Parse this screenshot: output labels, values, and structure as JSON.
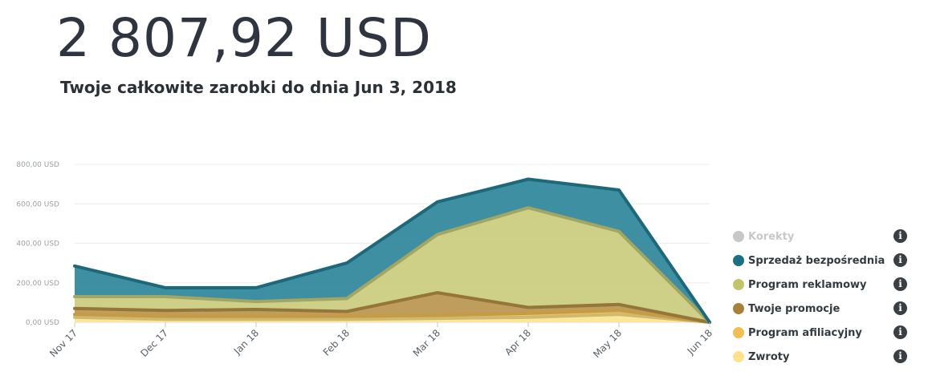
{
  "header": {
    "total": "2 807,92 USD",
    "subtitle": "Twoje całkowite zarobki do dnia Jun 3, 2018"
  },
  "chart_data": {
    "type": "area",
    "stacked": true,
    "categories": [
      "Nov 17",
      "Dec 17",
      "Jan 18",
      "Feb 18",
      "Mar 18",
      "Apr 18",
      "May 18",
      "Jun 18"
    ],
    "ylim": [
      0,
      800
    ],
    "yticks": [
      0,
      200,
      400,
      600,
      800
    ],
    "ytick_labels": [
      "0,00 USD",
      "200,00 USD",
      "400,00 USD",
      "600,00 USD",
      "800,00 USD"
    ],
    "grid": true,
    "legend_position": "right",
    "series": [
      {
        "name": "Zwroty",
        "color": "#fbe28b",
        "values": [
          25,
          15,
          15,
          15,
          20,
          25,
          40,
          0
        ]
      },
      {
        "name": "Program afiliacyjny",
        "color": "#f2bd52",
        "values": [
          15,
          15,
          15,
          15,
          15,
          20,
          20,
          0
        ]
      },
      {
        "name": "Twoje promocje",
        "color": "#b68f45",
        "values": [
          30,
          30,
          35,
          25,
          115,
          30,
          30,
          0
        ]
      },
      {
        "name": "Program reklamowy",
        "color": "#c7c977",
        "values": [
          60,
          70,
          40,
          65,
          295,
          505,
          370,
          0
        ]
      },
      {
        "name": "Sprzedaż bezpośrednia",
        "color": "#237f95",
        "values": [
          155,
          45,
          70,
          180,
          165,
          145,
          210,
          0
        ]
      },
      {
        "name": "Korekty",
        "color": "#c8c8c8",
        "values": [
          0,
          0,
          0,
          0,
          0,
          0,
          0,
          0
        ],
        "hidden": true
      }
    ]
  },
  "legend": {
    "items": [
      {
        "label": "Korekty",
        "color": "#c8c8c8",
        "muted": true
      },
      {
        "label": "Sprzedaż bezpośrednia",
        "color": "#1d6f85",
        "muted": false
      },
      {
        "label": "Program reklamowy",
        "color": "#c2c46c",
        "muted": false
      },
      {
        "label": "Twoje promocje",
        "color": "#a8823c",
        "muted": false
      },
      {
        "label": "Program afiliacyjny",
        "color": "#f2bd52",
        "muted": false
      },
      {
        "label": "Zwroty",
        "color": "#fbe28b",
        "muted": false
      }
    ],
    "info_glyph": "i",
    "info_icon": "info-icon"
  }
}
